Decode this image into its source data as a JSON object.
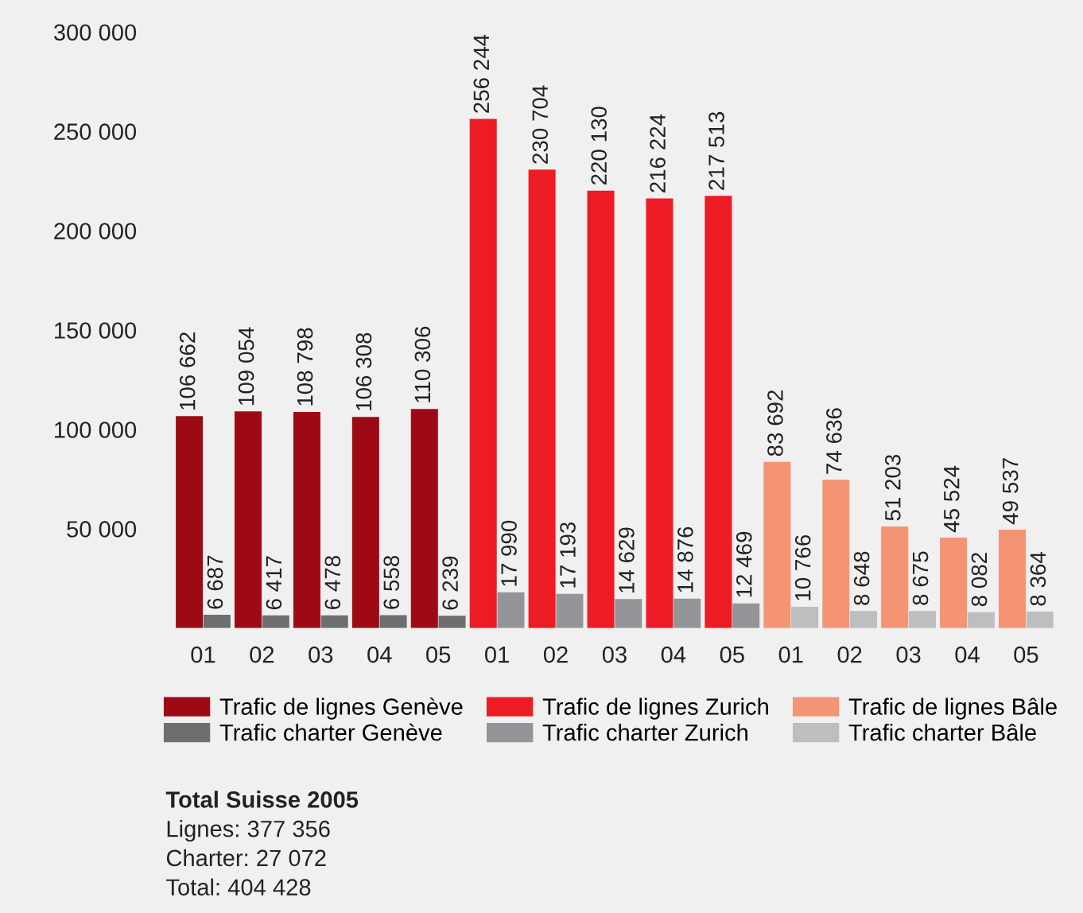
{
  "chart_data": {
    "type": "bar",
    "categories": [
      "01",
      "02",
      "03",
      "04",
      "05",
      "01",
      "02",
      "03",
      "04",
      "05",
      "01",
      "02",
      "03",
      "04",
      "05"
    ],
    "series": [
      {
        "name": "Trafic de lignes Genève",
        "color": "#9e0a14",
        "values": [
          106662,
          109054,
          108798,
          106308,
          110306,
          null,
          null,
          null,
          null,
          null,
          null,
          null,
          null,
          null,
          null
        ],
        "value_labels": [
          "106 662",
          "109 054",
          "108 798",
          "106 308",
          "110 306",
          null,
          null,
          null,
          null,
          null,
          null,
          null,
          null,
          null,
          null
        ]
      },
      {
        "name": "Trafic charter Genève",
        "color": "#6d6e70",
        "values": [
          6687,
          6417,
          6478,
          6558,
          6239,
          null,
          null,
          null,
          null,
          null,
          null,
          null,
          null,
          null,
          null
        ],
        "value_labels": [
          "6 687",
          "6 417",
          "6 478",
          "6 558",
          "6 239",
          null,
          null,
          null,
          null,
          null,
          null,
          null,
          null,
          null,
          null
        ]
      },
      {
        "name": "Trafic de lignes Zurich",
        "color": "#ed1c24",
        "values": [
          null,
          null,
          null,
          null,
          null,
          256244,
          230704,
          220130,
          216224,
          217513,
          null,
          null,
          null,
          null,
          null
        ],
        "value_labels": [
          null,
          null,
          null,
          null,
          null,
          "256 244",
          "230 704",
          "220 130",
          "216 224",
          "217 513",
          null,
          null,
          null,
          null,
          null
        ]
      },
      {
        "name": "Trafic charter Zurich",
        "color": "#939598",
        "values": [
          null,
          null,
          null,
          null,
          null,
          17990,
          17193,
          14629,
          14876,
          12469,
          null,
          null,
          null,
          null,
          null
        ],
        "value_labels": [
          null,
          null,
          null,
          null,
          null,
          "17 990",
          "17 193",
          "14 629",
          "14 876",
          "12 469",
          null,
          null,
          null,
          null,
          null
        ]
      },
      {
        "name": "Trafic de lignes Bâle",
        "color": "#f49475",
        "values": [
          null,
          null,
          null,
          null,
          null,
          null,
          null,
          null,
          null,
          null,
          83692,
          74636,
          51203,
          45524,
          49537
        ],
        "value_labels": [
          null,
          null,
          null,
          null,
          null,
          null,
          null,
          null,
          null,
          null,
          "83 692",
          "74 636",
          "51 203",
          "45 524",
          "49 537"
        ]
      },
      {
        "name": "Trafic charter Bâle",
        "color": "#bcbec0",
        "values": [
          null,
          null,
          null,
          null,
          null,
          null,
          null,
          null,
          null,
          null,
          10766,
          8648,
          8675,
          8082,
          8364
        ],
        "value_labels": [
          null,
          null,
          null,
          null,
          null,
          null,
          null,
          null,
          null,
          null,
          "10 766",
          "8 648",
          "8 675",
          "8 082",
          "8 364"
        ]
      }
    ],
    "ylim": [
      0,
      300000
    ],
    "yticks": [
      {
        "value": 50000,
        "label": "50 000"
      },
      {
        "value": 100000,
        "label": "100 000"
      },
      {
        "value": 150000,
        "label": "150 000"
      },
      {
        "value": 200000,
        "label": "200 000"
      },
      {
        "value": 250000,
        "label": "250 000"
      },
      {
        "value": 300000,
        "label": "300 000"
      }
    ],
    "grid": false,
    "legend": "bottom",
    "annotations": [
      "Total Suisse 2005",
      "Lignes: 377 356",
      "Charter: 27 072",
      "Total: 404 428"
    ]
  }
}
